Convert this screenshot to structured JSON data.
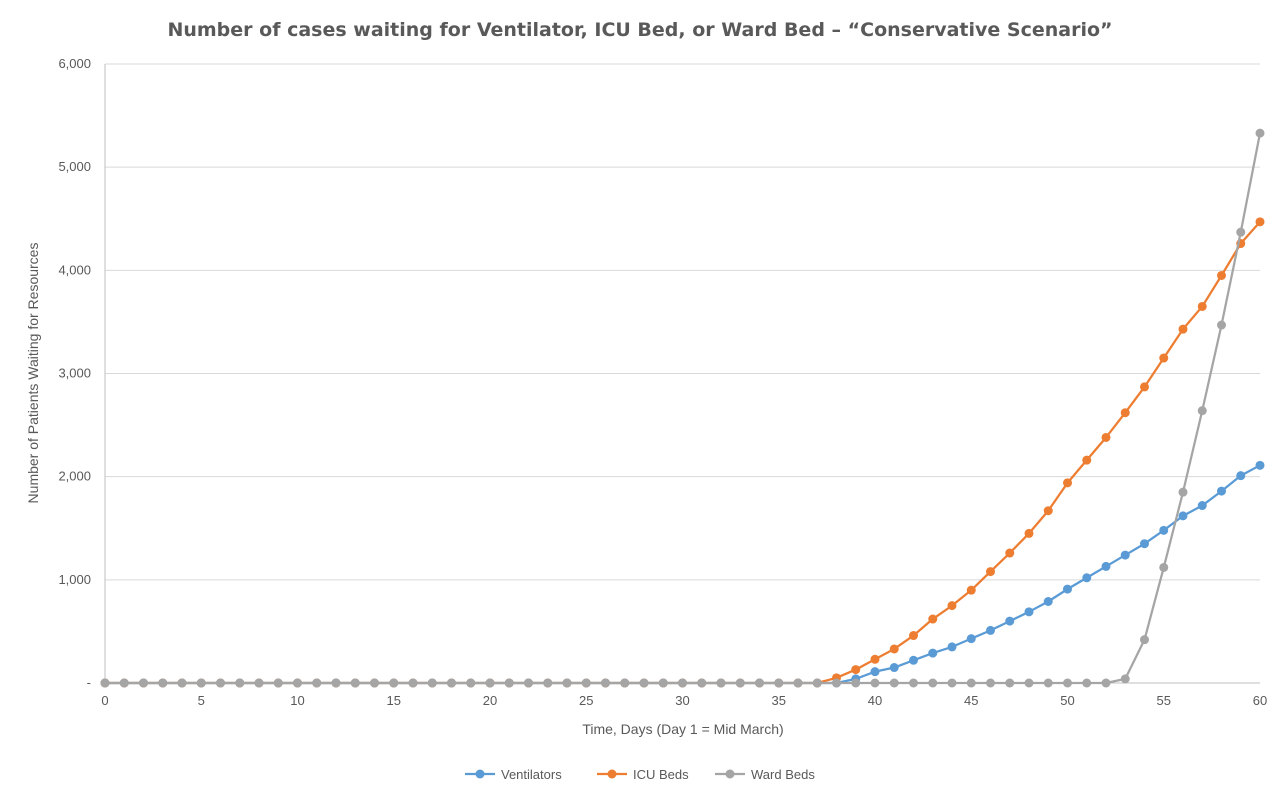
{
  "chart_data": {
    "type": "line",
    "title": "Number of cases waiting for Ventilator, ICU Bed, or Ward Bed – “Conservative Scenario”",
    "xlabel": "Time, Days (Day 1 = Mid March)",
    "ylabel": "Number of Patients Waiting for Resources",
    "xlim": [
      0,
      60
    ],
    "ylim": [
      0,
      6000
    ],
    "x_ticks": [
      0,
      5,
      10,
      15,
      20,
      25,
      30,
      35,
      40,
      45,
      50,
      55,
      60
    ],
    "x_tick_labels": [
      "0",
      "5",
      "10",
      "15",
      "20",
      "25",
      "30",
      "35",
      "40",
      "45",
      "50",
      "55",
      "60"
    ],
    "y_ticks": [
      0,
      1000,
      2000,
      3000,
      4000,
      5000,
      6000
    ],
    "y_tick_labels": [
      "-",
      "1,000",
      "2,000",
      "3,000",
      "4,000",
      "5,000",
      "6,000"
    ],
    "grid": true,
    "legend_position": "bottom",
    "x": [
      0,
      1,
      2,
      3,
      4,
      5,
      6,
      7,
      8,
      9,
      10,
      11,
      12,
      13,
      14,
      15,
      16,
      17,
      18,
      19,
      20,
      21,
      22,
      23,
      24,
      25,
      26,
      27,
      28,
      29,
      30,
      31,
      32,
      33,
      34,
      35,
      36,
      37,
      38,
      39,
      40,
      41,
      42,
      43,
      44,
      45,
      46,
      47,
      48,
      49,
      50,
      51,
      52,
      53,
      54,
      55,
      56,
      57,
      58,
      59,
      60
    ],
    "series": [
      {
        "name": "Ventilators",
        "color": "#5b9bd5",
        "values": [
          0,
          0,
          0,
          0,
          0,
          0,
          0,
          0,
          0,
          0,
          0,
          0,
          0,
          0,
          0,
          0,
          0,
          0,
          0,
          0,
          0,
          0,
          0,
          0,
          0,
          0,
          0,
          0,
          0,
          0,
          0,
          0,
          0,
          0,
          0,
          0,
          0,
          0,
          0,
          40,
          110,
          150,
          220,
          290,
          350,
          430,
          510,
          600,
          690,
          790,
          910,
          1020,
          1130,
          1240,
          1350,
          1480,
          1620,
          1720,
          1860,
          2010,
          2110
        ]
      },
      {
        "name": "ICU Beds",
        "color": "#ed7d31",
        "values": [
          0,
          0,
          0,
          0,
          0,
          0,
          0,
          0,
          0,
          0,
          0,
          0,
          0,
          0,
          0,
          0,
          0,
          0,
          0,
          0,
          0,
          0,
          0,
          0,
          0,
          0,
          0,
          0,
          0,
          0,
          0,
          0,
          0,
          0,
          0,
          0,
          0,
          0,
          50,
          130,
          230,
          330,
          460,
          620,
          750,
          900,
          1080,
          1260,
          1450,
          1670,
          1940,
          2160,
          2380,
          2620,
          2870,
          3150,
          3430,
          3650,
          3950,
          4260,
          4470
        ]
      },
      {
        "name": "Ward Beds",
        "color": "#a5a5a5",
        "values": [
          0,
          0,
          0,
          0,
          0,
          0,
          0,
          0,
          0,
          0,
          0,
          0,
          0,
          0,
          0,
          0,
          0,
          0,
          0,
          0,
          0,
          0,
          0,
          0,
          0,
          0,
          0,
          0,
          0,
          0,
          0,
          0,
          0,
          0,
          0,
          0,
          0,
          0,
          0,
          0,
          0,
          0,
          0,
          0,
          0,
          0,
          0,
          0,
          0,
          0,
          0,
          0,
          0,
          40,
          420,
          1120,
          1850,
          2640,
          3470,
          4370,
          5330
        ]
      }
    ]
  }
}
